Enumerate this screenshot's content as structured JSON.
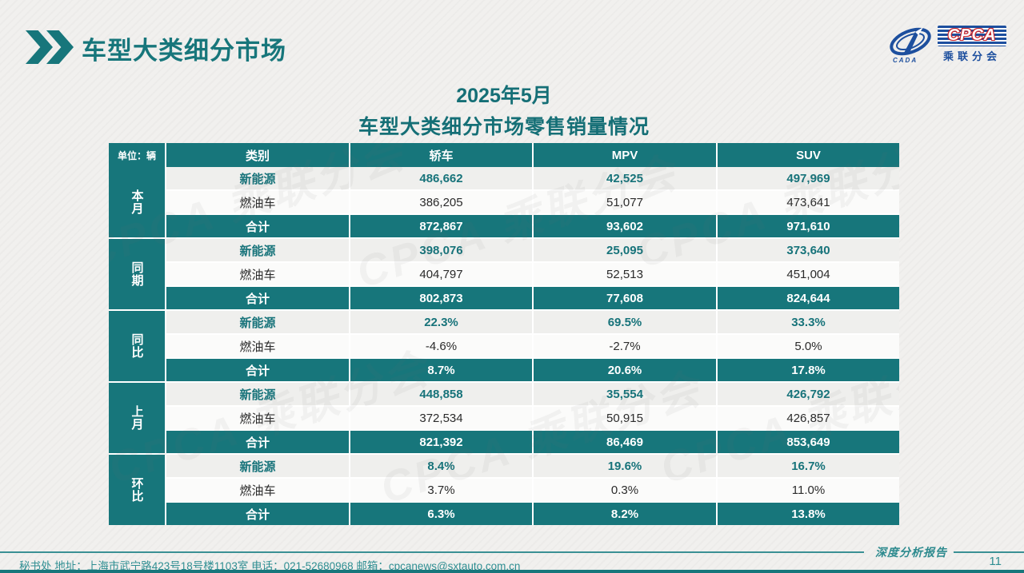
{
  "page": {
    "header_title": "车型大类细分市场",
    "subtitle_line1": "2025年5月",
    "subtitle_line2": "车型大类细分市场零售销量情况",
    "watermark_text": "CPCA 乘联分会",
    "logo": {
      "cpca": "CPCA",
      "cada": "CADA",
      "sub": "乘联分会"
    },
    "footer": {
      "left_text": "秘书处   地址：上海市武宁路423号18号楼1103室  电话：021-52680968   邮箱：cpcanews@sxtauto.com.cn",
      "report_label": "深度分析报告",
      "page_number": "11"
    }
  },
  "colors": {
    "teal": "#17767b",
    "accent_text": "#17737a",
    "logo_blue": "#1d4f9e",
    "logo_red": "#c4232a"
  },
  "table": {
    "unit_label": "单位：辆",
    "columns": [
      {
        "key": "category",
        "label": "类别"
      },
      {
        "key": "sedan",
        "label": "轿车"
      },
      {
        "key": "mpv",
        "label": "MPV"
      },
      {
        "key": "suv",
        "label": "SUV"
      }
    ],
    "groups": [
      {
        "key": "current-month",
        "label": "本月",
        "rows": [
          {
            "key": "nev",
            "label": "新能源",
            "values": [
              "486,662",
              "42,525",
              "497,969"
            ]
          },
          {
            "key": "fuel",
            "label": "燃油车",
            "values": [
              "386,205",
              "51,077",
              "473,641"
            ]
          },
          {
            "key": "total",
            "label": "合计",
            "values": [
              "872,867",
              "93,602",
              "971,610"
            ]
          }
        ]
      },
      {
        "key": "same-period-last-year",
        "label": "同期",
        "rows": [
          {
            "key": "nev",
            "label": "新能源",
            "values": [
              "398,076",
              "25,095",
              "373,640"
            ]
          },
          {
            "key": "fuel",
            "label": "燃油车",
            "values": [
              "404,797",
              "52,513",
              "451,004"
            ]
          },
          {
            "key": "total",
            "label": "合计",
            "values": [
              "802,873",
              "77,608",
              "824,644"
            ]
          }
        ]
      },
      {
        "key": "yoy-change",
        "label": "同比",
        "rows": [
          {
            "key": "nev",
            "label": "新能源",
            "values": [
              "22.3%",
              "69.5%",
              "33.3%"
            ]
          },
          {
            "key": "fuel",
            "label": "燃油车",
            "values": [
              "-4.6%",
              "-2.7%",
              "5.0%"
            ]
          },
          {
            "key": "total",
            "label": "合计",
            "values": [
              "8.7%",
              "20.6%",
              "17.8%"
            ]
          }
        ]
      },
      {
        "key": "last-month",
        "label": "上月",
        "rows": [
          {
            "key": "nev",
            "label": "新能源",
            "values": [
              "448,858",
              "35,554",
              "426,792"
            ]
          },
          {
            "key": "fuel",
            "label": "燃油车",
            "values": [
              "372,534",
              "50,915",
              "426,857"
            ]
          },
          {
            "key": "total",
            "label": "合计",
            "values": [
              "821,392",
              "86,469",
              "853,649"
            ]
          }
        ]
      },
      {
        "key": "mom-change",
        "label": "环比",
        "rows": [
          {
            "key": "nev",
            "label": "新能源",
            "values": [
              "8.4%",
              "19.6%",
              "16.7%"
            ]
          },
          {
            "key": "fuel",
            "label": "燃油车",
            "values": [
              "3.7%",
              "0.3%",
              "11.0%"
            ]
          },
          {
            "key": "total",
            "label": "合计",
            "values": [
              "6.3%",
              "8.2%",
              "13.8%"
            ]
          }
        ]
      }
    ]
  }
}
